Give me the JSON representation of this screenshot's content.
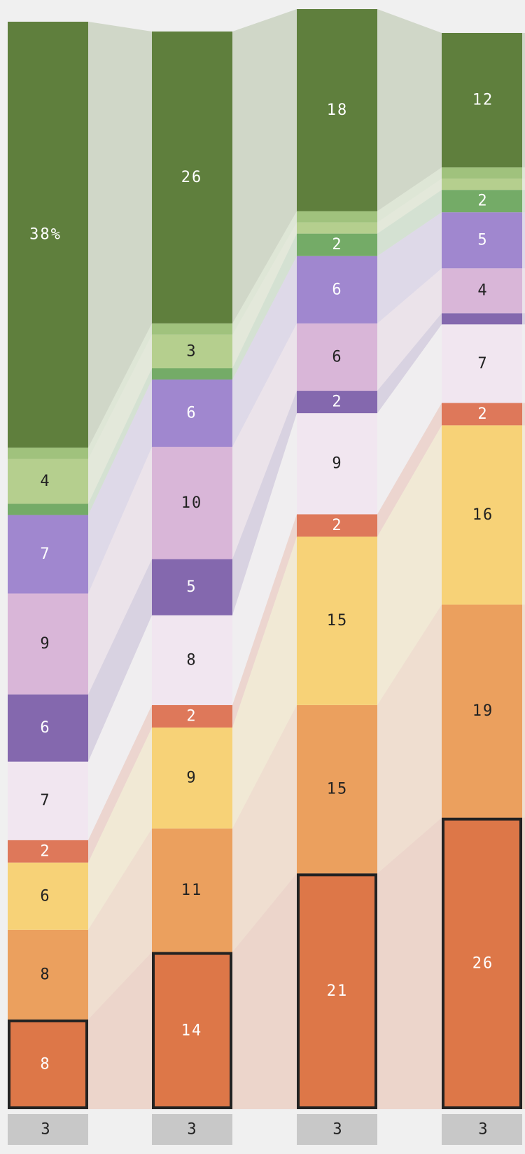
{
  "chart_data": {
    "type": "bar",
    "subtype": "stacked-100-percent-with-flow-bands",
    "orientation": "vertical",
    "bar_count": 4,
    "value_unit": "%",
    "highlighted_series": "Orange (bottom)",
    "background": "#f0f0f0",
    "footer_labels": [
      "3",
      "3",
      "3",
      "3"
    ],
    "series": [
      {
        "name": "Orange (bottom)",
        "color": "#dd7748",
        "values": [
          8,
          14,
          21,
          26
        ],
        "labels": [
          "8",
          "14",
          "21",
          "26"
        ],
        "text_color": "#ffffff"
      },
      {
        "name": "Light orange",
        "color": "#eba05e",
        "values": [
          8,
          11,
          15,
          19
        ],
        "labels": [
          "8",
          "11",
          "15",
          "19"
        ],
        "text_color": "#222222"
      },
      {
        "name": "Yellow",
        "color": "#f7d277",
        "values": [
          6,
          9,
          15,
          16
        ],
        "labels": [
          "6",
          "9",
          "15",
          "16"
        ],
        "text_color": "#222222"
      },
      {
        "name": "Red",
        "color": "#de785a",
        "values": [
          2,
          2,
          2,
          2
        ],
        "labels": [
          "2",
          "2",
          "2",
          "2"
        ],
        "text_color": "#ffffff"
      },
      {
        "name": "Pale lilac",
        "color": "#f1e6f0",
        "values": [
          7,
          8,
          9,
          7
        ],
        "labels": [
          "7",
          "8",
          "9",
          "7"
        ],
        "text_color": "#222222"
      },
      {
        "name": "Dark purple",
        "color": "#8468ae",
        "values": [
          6,
          5,
          2,
          1
        ],
        "labels": [
          "6",
          "5",
          "2",
          ""
        ],
        "text_color": "#ffffff"
      },
      {
        "name": "Pink",
        "color": "#d9b6d8",
        "values": [
          9,
          10,
          6,
          4
        ],
        "labels": [
          "9",
          "10",
          "6",
          "4"
        ],
        "text_color": "#222222"
      },
      {
        "name": "Purple",
        "color": "#a087cf",
        "values": [
          7,
          6,
          6,
          5
        ],
        "labels": [
          "7",
          "6",
          "6",
          "5"
        ],
        "text_color": "#ffffff"
      },
      {
        "name": "Mid green",
        "color": "#74ab67",
        "values": [
          1,
          1,
          2,
          2
        ],
        "labels": [
          "",
          "",
          "2",
          "2"
        ],
        "text_color": "#ffffff"
      },
      {
        "name": "Pale green",
        "color": "#b5cf8e",
        "values": [
          4,
          3,
          1,
          1
        ],
        "labels": [
          "4",
          "3",
          "",
          ""
        ],
        "text_color": "#222222"
      },
      {
        "name": "Light green",
        "color": "#a0c27d",
        "values": [
          1,
          1,
          1,
          1
        ],
        "labels": [
          "",
          "",
          "",
          ""
        ],
        "text_color": "#222222"
      },
      {
        "name": "Dark green (top)",
        "color": "#5f7f3d",
        "values": [
          38,
          26,
          18,
          12
        ],
        "labels": [
          "38%",
          "26",
          "18",
          "12"
        ],
        "text_color": "#ffffff"
      }
    ]
  }
}
